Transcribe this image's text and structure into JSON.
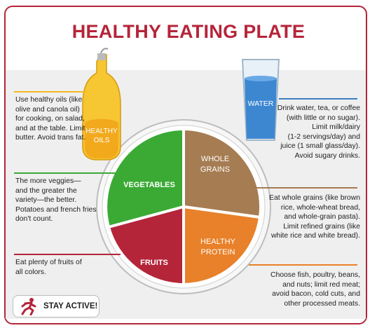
{
  "title": "HEALTHY EATING PLATE",
  "plate": {
    "vegetables": "VEGETABLES",
    "whole_grains_1": "WHOLE",
    "whole_grains_2": "GRAINS",
    "fruits": "FRUITS",
    "protein_1": "HEALTHY",
    "protein_2": "PROTEIN"
  },
  "oils": {
    "line1": "HEALTHY",
    "line2": "OILS"
  },
  "water": {
    "label": "WATER"
  },
  "notes": {
    "oils": [
      "Use healthy oils (like",
      "olive and canola oil)",
      "for cooking, on salad,",
      "and at the table. Limit",
      "butter. Avoid trans fat."
    ],
    "veggies": [
      "The more veggies—",
      "and the greater the",
      "variety—the better.",
      "Potatoes and french fries",
      "don't count."
    ],
    "fruits": [
      "Eat plenty of fruits of",
      "all colors."
    ],
    "water": [
      "Drink water, tea, or coffee",
      "(with little or no sugar).",
      "Limit milk/dairy",
      "(1-2 servings/day) and",
      "juice (1 small glass/day).",
      "Avoid sugary drinks."
    ],
    "grains": [
      "Eat whole grains (like brown",
      "rice, whole-wheat bread,",
      "and whole-grain pasta).",
      "Limit refined grains (like",
      "white rice and white bread)."
    ],
    "protein": [
      "Choose fish, poultry, beans,",
      "and nuts; limit red meat;",
      "avoid bacon, cold cuts, and",
      "other processed meats."
    ]
  },
  "stay_active": "STAY ACTIVE!",
  "colors": {
    "title": "#b5253a",
    "vegetables": "#3aaa35",
    "grains": "#a67c52",
    "fruits": "#b5253a",
    "protein": "#e8812a",
    "water_line": "#3a7fc1",
    "oil": "#f2b81c"
  }
}
